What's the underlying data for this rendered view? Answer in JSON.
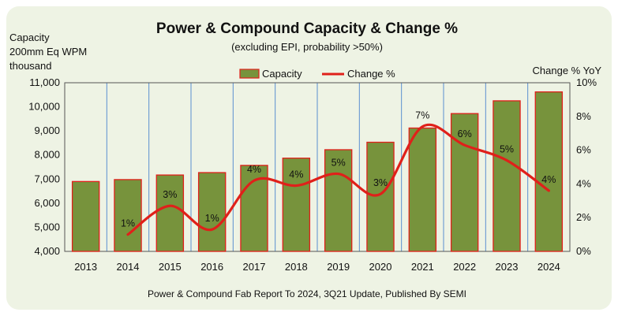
{
  "chart_data": {
    "type": "bar",
    "title": "Power & Compound Capacity & Change %",
    "subtitle": "(excluding EPI, probability >50%)",
    "ylabel_lines": [
      "Capacity",
      "200mm Eq WPM",
      "thousand"
    ],
    "y2label": "Change % YoY",
    "source": "Power & Compound Fab Report To 2024, 3Q21 Update, Published By SEMI",
    "categories": [
      "2013",
      "2014",
      "2015",
      "2016",
      "2017",
      "2018",
      "2019",
      "2020",
      "2021",
      "2022",
      "2023",
      "2024"
    ],
    "series": [
      {
        "name": "Capacity",
        "type": "bar",
        "color": "#77933c",
        "edge_color": "#e0201a",
        "values": [
          6900,
          6980,
          7170,
          7270,
          7570,
          7870,
          8220,
          8530,
          9120,
          9720,
          10250,
          10620
        ]
      },
      {
        "name": "Change %",
        "type": "line",
        "axis": "right",
        "color": "#e0201a",
        "values": [
          null,
          1.0,
          2.7,
          1.3,
          4.2,
          3.9,
          4.6,
          3.4,
          7.4,
          6.3,
          5.4,
          3.6
        ],
        "data_labels": [
          null,
          "1%",
          "3%",
          "1%",
          "4%",
          "4%",
          "5%",
          "3%",
          "7%",
          "6%",
          "5%",
          "4%"
        ]
      }
    ],
    "ylim": [
      4000,
      11000
    ],
    "y_ticks": [
      4000,
      5000,
      6000,
      7000,
      8000,
      9000,
      10000,
      11000
    ],
    "y_tick_labels": [
      "4,000",
      "5,000",
      "6,000",
      "7,000",
      "8,000",
      "9,000",
      "10,000",
      "11,000"
    ],
    "y2lim": [
      0,
      10
    ],
    "y2_ticks": [
      0,
      2,
      4,
      6,
      8,
      10
    ],
    "y2_tick_labels": [
      "0%",
      "2%",
      "4%",
      "6%",
      "8%",
      "10%"
    ],
    "grid": "vertical",
    "grid_color": "#5b8fd0",
    "legend_position": "top-center"
  }
}
